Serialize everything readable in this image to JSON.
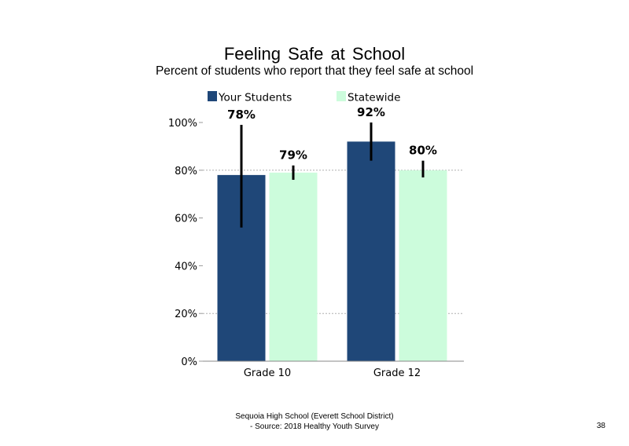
{
  "slide": {
    "title": "Feeling  Safe at School",
    "subtitle": "Percent of students who report that they feel safe at school",
    "footer_line1": "Sequoia High School (Everett School District)",
    "footer_line2": "- Source: 2018 Healthy  Youth Survey",
    "page_number": "38"
  },
  "chart_data": {
    "type": "bar",
    "categories": [
      "Grade 10",
      "Grade 12"
    ],
    "series": [
      {
        "name": "Your Students",
        "color": "#1f4778",
        "values": [
          78,
          92
        ],
        "labels": [
          "78%",
          "92%"
        ],
        "error_low": [
          56,
          84
        ],
        "error_high": [
          99,
          100
        ]
      },
      {
        "name": "Statewide",
        "color": "#ccfcdc",
        "values": [
          79,
          80
        ],
        "labels": [
          "79%",
          "80%"
        ],
        "error_low": [
          76,
          77
        ],
        "error_high": [
          82,
          84
        ]
      }
    ],
    "yticks": [
      "0%",
      "20%",
      "40%",
      "60%",
      "80%",
      "100%"
    ],
    "ytick_values": [
      0,
      20,
      40,
      60,
      80,
      100
    ],
    "ylim": [
      0,
      100
    ],
    "gridlines": "dotted at 20% and 80%",
    "legend_position": "top"
  }
}
